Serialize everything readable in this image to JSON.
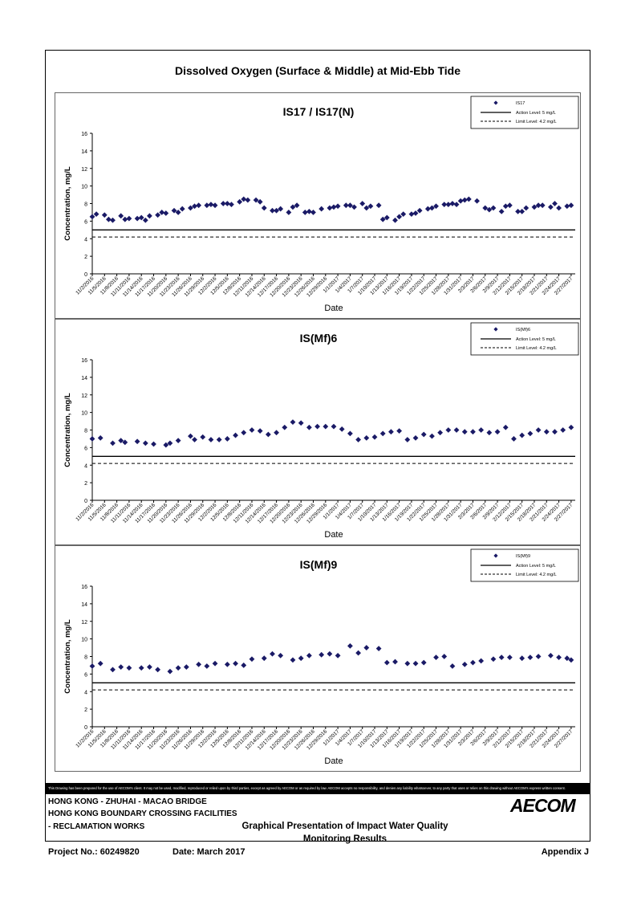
{
  "page": {
    "title": "Dissolved Oxygen (Surface & Middle) at Mid-Ebb Tide",
    "disclaimer": "This Drawing has been prepared for the use of AECOM's client. It may not be used, modified, reproduced or relied upon by third parties, except as agreed by AECOM or as required by law. AECOM accepts no responsibility, and denies any liability whatsoever, to any party that uses or relies on this drawing without AECOM's express written consent.",
    "project_line1": "HONG KONG - ZHUHAI - MACAO BRIDGE",
    "project_line2": "HONG KONG BOUNDARY CROSSING FACILITIES",
    "project_line3": "- RECLAMATION WORKS",
    "doc_title_line1": "Graphical Presentation of Impact Water Quality",
    "doc_title_line2": "Monitoring Results",
    "project_no": "Project No.: 60249820",
    "date": "Date: March 2017",
    "appendix": "Appendix J",
    "logo_text": "AECOM"
  },
  "colors": {
    "marker": "#1a1a66",
    "line": "#000000"
  },
  "chart_data": [
    {
      "type": "scatter",
      "title": "IS17 / IS17(N)",
      "xlabel": "Date",
      "ylabel": "Concentration, mg/L",
      "ylim": [
        0,
        16
      ],
      "yticks": [
        0,
        2,
        4,
        6,
        8,
        10,
        12,
        14,
        16
      ],
      "x_tick_labels": [
        "11/2/2016",
        "11/5/2016",
        "11/8/2016",
        "11/11/2016",
        "11/14/2016",
        "11/17/2016",
        "11/20/2016",
        "11/23/2016",
        "11/26/2016",
        "11/29/2016",
        "12/2/2016",
        "12/5/2016",
        "12/8/2016",
        "12/11/2016",
        "12/14/2016",
        "12/17/2016",
        "12/20/2016",
        "12/23/2016",
        "12/26/2016",
        "12/29/2016",
        "1/1/2017",
        "1/4/2017",
        "1/7/2017",
        "1/10/2017",
        "1/13/2017",
        "1/16/2017",
        "1/19/2017",
        "1/22/2017",
        "1/25/2017",
        "1/28/2017",
        "1/31/2017",
        "2/3/2017",
        "2/6/2017",
        "2/9/2017",
        "2/12/2017",
        "2/15/2017",
        "2/18/2017",
        "2/21/2017",
        "2/24/2017",
        "2/27/2017"
      ],
      "legend": {
        "series": "IS17",
        "action": "Action Level: 5 mg/L",
        "limit": "Limit Level: 4.2 mg/L",
        "placement": "top-right"
      },
      "action_level": 5,
      "limit_level": 4.2,
      "x": [
        0,
        1,
        3,
        4,
        5,
        7,
        8,
        9,
        11,
        12,
        13,
        14,
        16,
        17,
        18,
        20,
        21,
        22,
        24,
        25,
        26,
        28,
        29,
        30,
        32,
        33,
        34,
        36,
        37,
        38,
        40,
        41,
        42,
        44,
        45,
        46,
        48,
        49,
        50,
        52,
        53,
        54,
        56,
        58,
        59,
        60,
        62,
        63,
        64,
        66,
        67,
        68,
        70,
        71,
        72,
        74,
        75,
        76,
        78,
        79,
        80,
        82,
        83,
        84,
        86,
        87,
        88,
        89,
        90,
        91,
        92,
        94,
        96,
        97,
        98,
        100,
        101,
        102,
        104,
        105,
        106,
        108,
        109,
        110,
        112,
        113,
        114,
        116,
        117
      ],
      "y": [
        6.5,
        6.8,
        6.7,
        6.2,
        6.1,
        6.6,
        6.2,
        6.3,
        6.3,
        6.4,
        6.1,
        6.6,
        6.7,
        7.0,
        6.9,
        7.2,
        7.0,
        7.4,
        7.5,
        7.7,
        7.8,
        7.8,
        7.9,
        7.8,
        8.0,
        8.0,
        7.9,
        8.2,
        8.5,
        8.4,
        8.4,
        8.2,
        7.5,
        7.2,
        7.2,
        7.4,
        7.0,
        7.6,
        7.8,
        7.0,
        7.1,
        7.0,
        7.4,
        7.5,
        7.6,
        7.7,
        7.8,
        7.8,
        7.6,
        8.0,
        7.5,
        7.7,
        7.8,
        6.2,
        6.4,
        6.1,
        6.5,
        6.8,
        6.8,
        6.9,
        7.2,
        7.4,
        7.5,
        7.7,
        7.9,
        7.9,
        8.0,
        7.9,
        8.3,
        8.4,
        8.5,
        8.3,
        7.5,
        7.3,
        7.5,
        7.1,
        7.7,
        7.8,
        7.1,
        7.1,
        7.5,
        7.6,
        7.8,
        7.8,
        7.6,
        8.0,
        7.5,
        7.7,
        7.8
      ]
    },
    {
      "type": "scatter",
      "title": "IS(Mf)6",
      "xlabel": "Date",
      "ylabel": "Concentration, mg/L",
      "ylim": [
        0,
        16
      ],
      "yticks": [
        0,
        2,
        4,
        6,
        8,
        10,
        12,
        14,
        16
      ],
      "x_tick_labels": [
        "11/2/2016",
        "11/5/2016",
        "11/8/2016",
        "11/11/2016",
        "11/14/2016",
        "11/17/2016",
        "11/20/2016",
        "11/23/2016",
        "11/26/2016",
        "11/29/2016",
        "12/2/2016",
        "12/5/2016",
        "12/8/2016",
        "12/11/2016",
        "12/14/2016",
        "12/17/2016",
        "12/20/2016",
        "12/23/2016",
        "12/26/2016",
        "12/29/2016",
        "1/1/2017",
        "1/4/2017",
        "1/7/2017",
        "1/10/2017",
        "1/13/2017",
        "1/16/2017",
        "1/19/2017",
        "1/22/2017",
        "1/25/2017",
        "1/28/2017",
        "1/31/2017",
        "2/3/2017",
        "2/6/2017",
        "2/9/2017",
        "2/12/2017",
        "2/15/2017",
        "2/18/2017",
        "2/21/2017",
        "2/24/2017",
        "2/27/2017"
      ],
      "legend": {
        "series": "IS(Mf)6",
        "action": "Action Level: 5 mg/L",
        "limit": "Limit Level: 4.2 mg/L",
        "placement": "top-right"
      },
      "action_level": 5,
      "limit_level": 4.2,
      "x": [
        0,
        2,
        5,
        7,
        8,
        11,
        13,
        15,
        18,
        19,
        21,
        24,
        25,
        27,
        29,
        31,
        33,
        35,
        37,
        39,
        41,
        43,
        45,
        47,
        49,
        51,
        53,
        55,
        57,
        59,
        61,
        63,
        65,
        67,
        69,
        71,
        73,
        75,
        77,
        79,
        81,
        83,
        85,
        87,
        89,
        91,
        93,
        95,
        97,
        99,
        101,
        103,
        105,
        107,
        109,
        111,
        113,
        115,
        117
      ],
      "y": [
        7.0,
        7.1,
        6.5,
        6.8,
        6.6,
        6.7,
        6.5,
        6.4,
        6.3,
        6.5,
        6.8,
        7.3,
        6.9,
        7.2,
        6.9,
        6.9,
        7.0,
        7.4,
        7.7,
        8.0,
        7.9,
        7.5,
        7.7,
        8.3,
        8.9,
        8.8,
        8.3,
        8.4,
        8.4,
        8.4,
        8.1,
        7.6,
        6.9,
        7.1,
        7.2,
        7.6,
        7.8,
        7.9,
        6.9,
        7.1,
        7.5,
        7.3,
        7.7,
        8.0,
        8.0,
        7.8,
        7.8,
        8.0,
        7.7,
        7.8,
        8.3,
        7.0,
        7.4,
        7.6,
        8.0,
        7.8,
        7.8,
        8.0,
        8.3
      ]
    },
    {
      "type": "scatter",
      "title": "IS(Mf)9",
      "xlabel": "Date",
      "ylabel": "Concentration, mg/L",
      "ylim": [
        0,
        16
      ],
      "yticks": [
        0,
        2,
        4,
        6,
        8,
        10,
        12,
        14,
        16
      ],
      "x_tick_labels": [
        "11/2/2016",
        "11/5/2016",
        "11/8/2016",
        "11/11/2016",
        "11/14/2016",
        "11/17/2016",
        "11/20/2016",
        "11/23/2016",
        "11/26/2016",
        "11/29/2016",
        "12/2/2016",
        "12/5/2016",
        "12/8/2016",
        "12/11/2016",
        "12/14/2016",
        "12/17/2016",
        "12/20/2016",
        "12/23/2016",
        "12/26/2016",
        "12/29/2016",
        "1/1/2017",
        "1/4/2017",
        "1/7/2017",
        "1/10/2017",
        "1/13/2017",
        "1/16/2017",
        "1/19/2017",
        "1/22/2017",
        "1/25/2017",
        "1/28/2017",
        "1/31/2017",
        "2/3/2017",
        "2/6/2017",
        "2/9/2017",
        "2/12/2017",
        "2/15/2017",
        "2/18/2017",
        "2/21/2017",
        "2/24/2017",
        "2/27/2017"
      ],
      "legend": {
        "series": "IS(Mf)9",
        "action": "Action Level: 5 mg/L",
        "limit": "Limit Level: 4.2 mg/L",
        "placement": "top-right"
      },
      "action_level": 5,
      "limit_level": 4.2,
      "x": [
        0,
        2,
        5,
        7,
        9,
        12,
        14,
        16,
        19,
        21,
        23,
        26,
        28,
        30,
        33,
        35,
        37,
        39,
        42,
        44,
        46,
        49,
        51,
        53,
        56,
        58,
        60,
        63,
        65,
        67,
        70,
        72,
        74,
        77,
        79,
        81,
        84,
        86,
        88,
        91,
        93,
        95,
        98,
        100,
        102,
        105,
        107,
        109,
        112,
        114,
        116,
        117
      ],
      "y": [
        6.9,
        7.2,
        6.5,
        6.8,
        6.7,
        6.7,
        6.8,
        6.5,
        6.3,
        6.7,
        6.8,
        7.1,
        6.9,
        7.2,
        7.1,
        7.2,
        7.0,
        7.7,
        7.8,
        8.3,
        8.1,
        7.6,
        7.8,
        8.1,
        8.2,
        8.3,
        8.1,
        9.2,
        8.4,
        9.0,
        8.9,
        7.3,
        7.4,
        7.2,
        7.2,
        7.3,
        7.9,
        8.0,
        6.9,
        7.1,
        7.3,
        7.5,
        7.7,
        7.9,
        7.9,
        7.8,
        7.9,
        8.0,
        8.1,
        7.9,
        7.8,
        7.6
      ]
    }
  ]
}
